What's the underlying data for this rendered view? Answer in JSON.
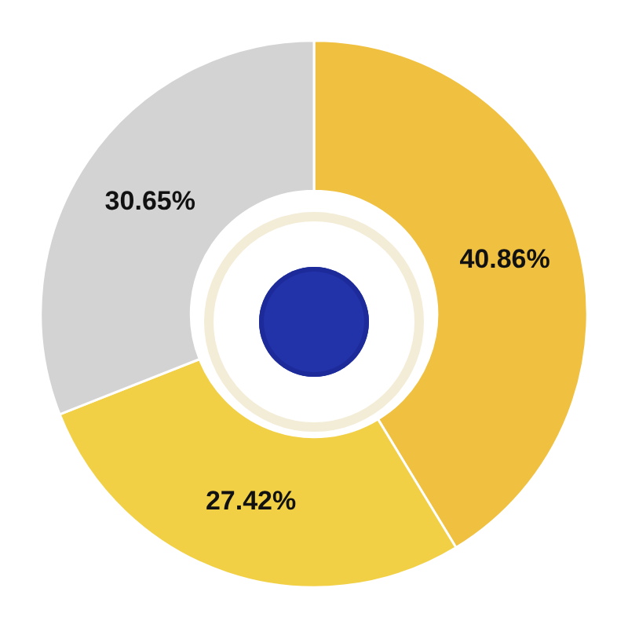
{
  "chart_data": {
    "type": "donut",
    "categories": [
      null,
      null,
      null
    ],
    "values": [
      40.86,
      27.42,
      30.65
    ],
    "colors": [
      "#f0c040",
      "#f2d045",
      "#d3d3d3"
    ],
    "value_labels": [
      "40.86%",
      "27.42%",
      "30.65%"
    ],
    "legend": false
  }
}
